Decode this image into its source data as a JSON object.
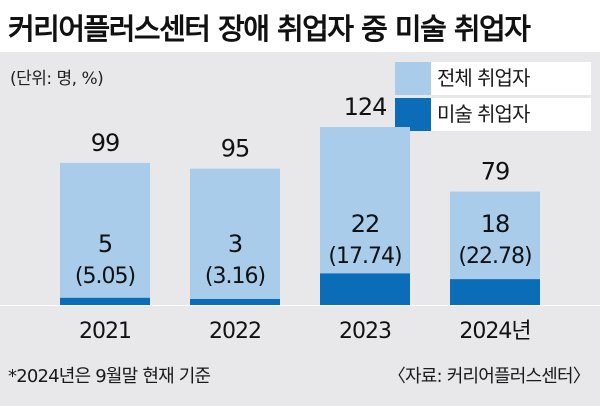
{
  "title": "커리어플러스센터 장애 취업자 중 미술 취업자",
  "unit_label": "(단위: 명, %)",
  "legend": [
    {
      "label": "전체 취업자",
      "color": "#a9ccea"
    },
    {
      "label": "미술 취업자",
      "color": "#0b6cb8"
    }
  ],
  "footnote": "*2024년은 9월말 현재 기준",
  "source": "〈자료: 커리어플러스센터〉",
  "chart_data": {
    "type": "bar",
    "categories": [
      "2021",
      "2022",
      "2023",
      "2024년"
    ],
    "series": [
      {
        "name": "전체 취업자",
        "values": [
          99,
          95,
          124,
          79
        ]
      },
      {
        "name": "미술 취업자",
        "values": [
          5,
          3,
          22,
          18
        ]
      }
    ],
    "percent_labels": [
      "(5.05)",
      "(3.16)",
      "(17.74)",
      "(22.78)"
    ],
    "colors": {
      "total": "#a9ccea",
      "art": "#0b6cb8"
    },
    "ylim": [
      0,
      130
    ],
    "overlay": true
  }
}
